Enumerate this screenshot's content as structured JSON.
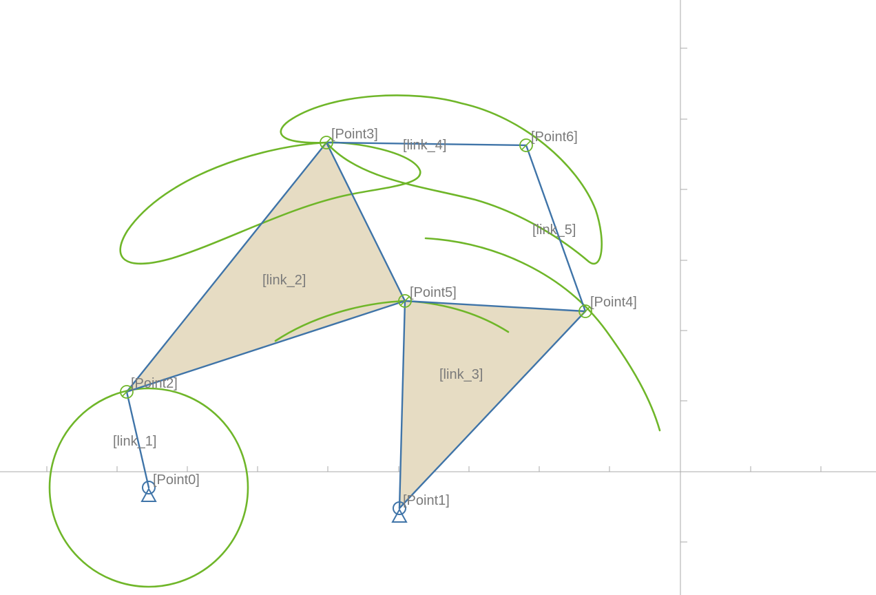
{
  "colors": {
    "link": "#3f74a8",
    "plate_fill": "#e6dcc3",
    "trace": "#6fb629",
    "axis": "#a8a8a8",
    "label": "#7a7a7a"
  },
  "points": {
    "p0": "[Point0]",
    "p1": "[Point1]",
    "p2": "[Point2]",
    "p3": "[Point3]",
    "p4": "[Point4]",
    "p5": "[Point5]",
    "p6": "[Point6]"
  },
  "links": {
    "l1": "[link_1]",
    "l2": "[link_2]",
    "l3": "[link_3]",
    "l4": "[link_4]",
    "l5": "[link_5]"
  },
  "ground_icon": "pin-support-triangle"
}
